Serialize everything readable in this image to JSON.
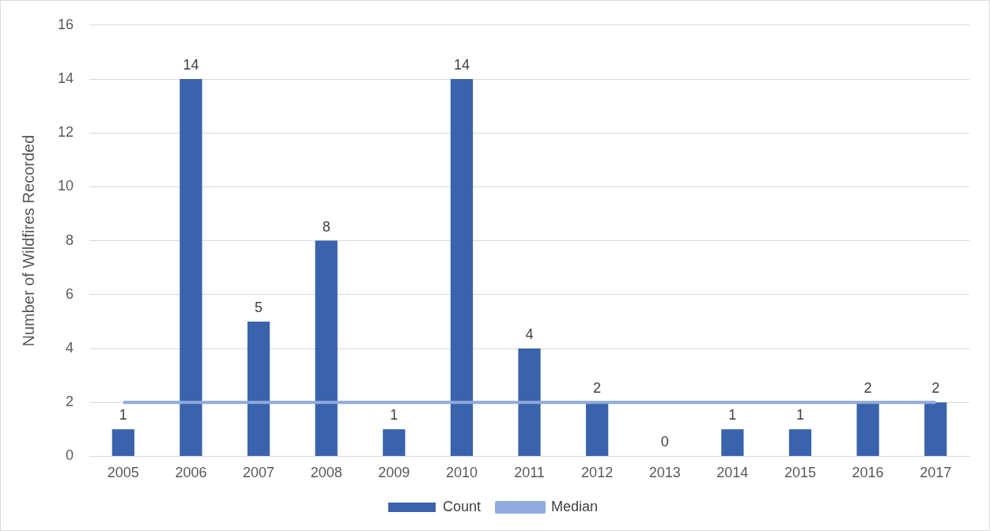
{
  "chart_data": {
    "type": "bar",
    "ylabel": "Number of Wildfires Recorded",
    "categories": [
      "2005",
      "2006",
      "2007",
      "2008",
      "2009",
      "2010",
      "2011",
      "2012",
      "2013",
      "2014",
      "2015",
      "2016",
      "2017"
    ],
    "series": [
      {
        "name": "Count",
        "color": "#3a63ad",
        "values": [
          1,
          14,
          5,
          8,
          1,
          14,
          4,
          2,
          0,
          1,
          1,
          2,
          2
        ],
        "value_labels": [
          "1",
          "14",
          "5",
          "8",
          "1",
          "14",
          "4",
          "2",
          "0",
          "1",
          "1",
          "2",
          "2"
        ]
      },
      {
        "name": "Median",
        "type": "line",
        "color": "#8faadc",
        "values": [
          2,
          2,
          2,
          2,
          2,
          2,
          2,
          2,
          2,
          2,
          2,
          2,
          2
        ]
      }
    ],
    "ylim": [
      0,
      16
    ],
    "yticks": [
      0,
      2,
      4,
      6,
      8,
      10,
      12,
      14,
      16
    ],
    "grid": "y",
    "legend": "bottom",
    "marker": "none"
  }
}
